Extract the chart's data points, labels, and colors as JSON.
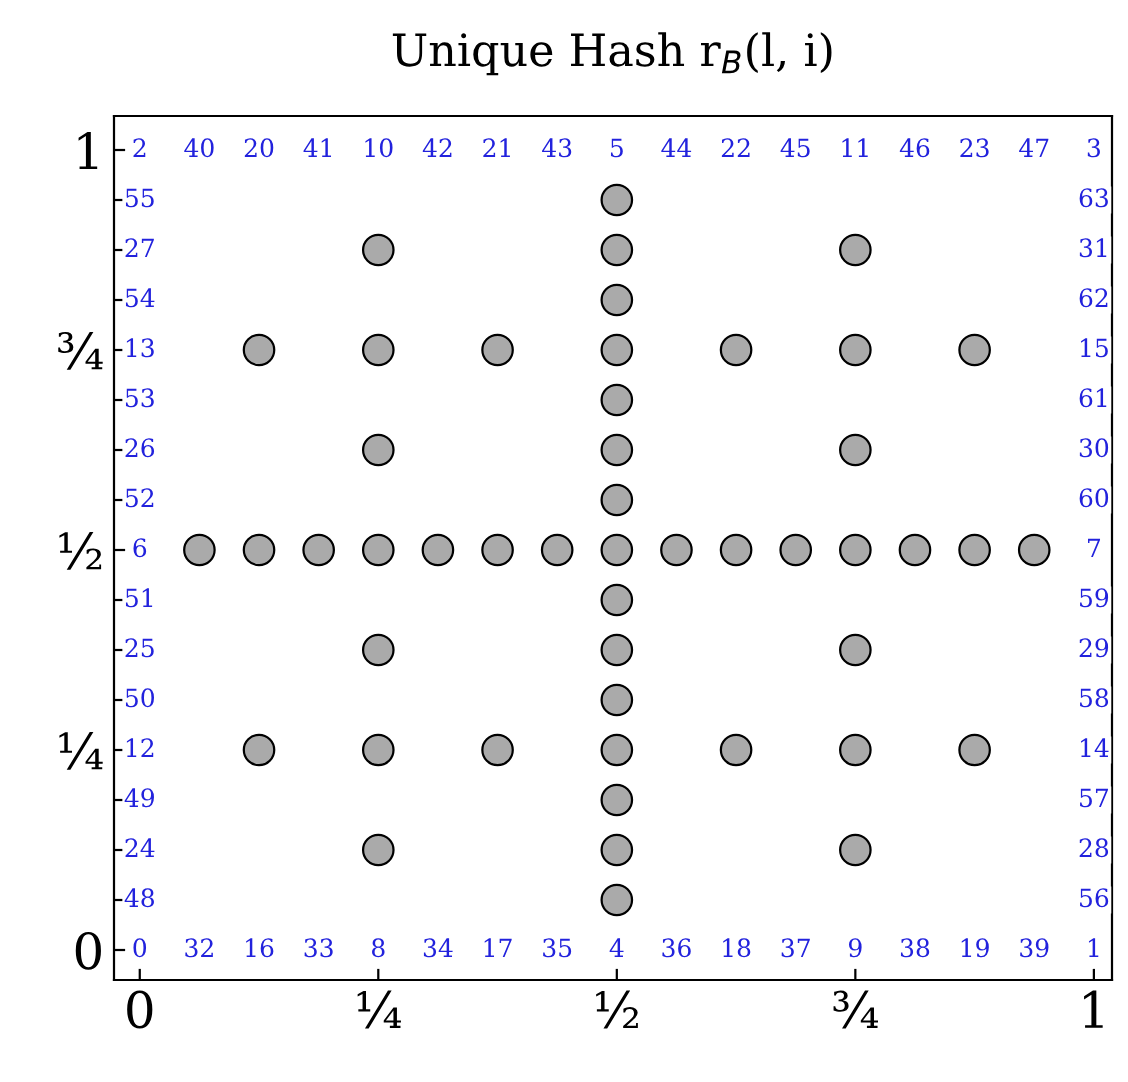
{
  "chart_data": {
    "type": "scatter",
    "title": "Unique Hash r$_{B}$(l, i)",
    "x": [
      0.5,
      0.5,
      0.5,
      0.5,
      0.5,
      0.5,
      0.5,
      0.5,
      0.5,
      0.5,
      0.5,
      0.5,
      0.5,
      0.5,
      0.5,
      0.0625,
      0.125,
      0.1875,
      0.25,
      0.3125,
      0.375,
      0.4375,
      0.5625,
      0.625,
      0.6875,
      0.75,
      0.8125,
      0.875,
      0.9375,
      0.25,
      0.25,
      0.25,
      0.25,
      0.25,
      0.25,
      0.75,
      0.75,
      0.75,
      0.75,
      0.75,
      0.75,
      0.125,
      0.125,
      0.375,
      0.375,
      0.625,
      0.625,
      0.875,
      0.875
    ],
    "values": [
      0.0625,
      0.125,
      0.1875,
      0.25,
      0.3125,
      0.375,
      0.4375,
      0.5,
      0.5625,
      0.625,
      0.6875,
      0.75,
      0.8125,
      0.875,
      0.9375,
      0.5,
      0.5,
      0.5,
      0.5,
      0.5,
      0.5,
      0.5,
      0.5,
      0.5,
      0.5,
      0.5,
      0.5,
      0.5,
      0.5,
      0.125,
      0.25,
      0.375,
      0.625,
      0.75,
      0.875,
      0.125,
      0.25,
      0.375,
      0.625,
      0.75,
      0.875,
      0.25,
      0.75,
      0.25,
      0.75,
      0.25,
      0.75,
      0.25,
      0.75
    ],
    "color": "#aaaaaa",
    "marker": "circle",
    "grid": false,
    "xlim": [
      -0.027,
      1.019
    ],
    "ylim": [
      -0.0375,
      1.0425
    ],
    "xticks": [
      {
        "value": 0,
        "label": "0"
      },
      {
        "value": 0.25,
        "label": "¼"
      },
      {
        "value": 0.5,
        "label": "½"
      },
      {
        "value": 0.75,
        "label": "¾"
      },
      {
        "value": 1,
        "label": "1"
      }
    ],
    "yticks": [
      {
        "value": 0,
        "label": "0"
      },
      {
        "value": 0.0625,
        "label": null
      },
      {
        "value": 0.125,
        "label": null
      },
      {
        "value": 0.1875,
        "label": null
      },
      {
        "value": 0.25,
        "label": "¼"
      },
      {
        "value": 0.3125,
        "label": null
      },
      {
        "value": 0.375,
        "label": null
      },
      {
        "value": 0.4375,
        "label": null
      },
      {
        "value": 0.5,
        "label": "½"
      },
      {
        "value": 0.5625,
        "label": null
      },
      {
        "value": 0.625,
        "label": null
      },
      {
        "value": 0.6875,
        "label": null
      },
      {
        "value": 0.75,
        "label": "¾"
      },
      {
        "value": 0.8125,
        "label": null
      },
      {
        "value": 0.875,
        "label": null
      },
      {
        "value": 0.9375,
        "label": null
      },
      {
        "value": 1,
        "label": "1"
      }
    ],
    "annotations": [
      {
        "text": "2",
        "x": 0,
        "y": 1
      },
      {
        "text": "40",
        "x": 0.0625,
        "y": 1
      },
      {
        "text": "20",
        "x": 0.125,
        "y": 1
      },
      {
        "text": "41",
        "x": 0.1875,
        "y": 1
      },
      {
        "text": "10",
        "x": 0.25,
        "y": 1
      },
      {
        "text": "42",
        "x": 0.3125,
        "y": 1
      },
      {
        "text": "21",
        "x": 0.375,
        "y": 1
      },
      {
        "text": "43",
        "x": 0.4375,
        "y": 1
      },
      {
        "text": "5",
        "x": 0.5,
        "y": 1
      },
      {
        "text": "44",
        "x": 0.5625,
        "y": 1
      },
      {
        "text": "22",
        "x": 0.625,
        "y": 1
      },
      {
        "text": "45",
        "x": 0.6875,
        "y": 1
      },
      {
        "text": "11",
        "x": 0.75,
        "y": 1
      },
      {
        "text": "46",
        "x": 0.8125,
        "y": 1
      },
      {
        "text": "23",
        "x": 0.875,
        "y": 1
      },
      {
        "text": "47",
        "x": 0.9375,
        "y": 1
      },
      {
        "text": "3",
        "x": 1,
        "y": 1
      },
      {
        "text": "0",
        "x": 0,
        "y": 0
      },
      {
        "text": "32",
        "x": 0.0625,
        "y": 0
      },
      {
        "text": "16",
        "x": 0.125,
        "y": 0
      },
      {
        "text": "33",
        "x": 0.1875,
        "y": 0
      },
      {
        "text": "8",
        "x": 0.25,
        "y": 0
      },
      {
        "text": "34",
        "x": 0.3125,
        "y": 0
      },
      {
        "text": "17",
        "x": 0.375,
        "y": 0
      },
      {
        "text": "35",
        "x": 0.4375,
        "y": 0
      },
      {
        "text": "4",
        "x": 0.5,
        "y": 0
      },
      {
        "text": "36",
        "x": 0.5625,
        "y": 0
      },
      {
        "text": "18",
        "x": 0.625,
        "y": 0
      },
      {
        "text": "37",
        "x": 0.6875,
        "y": 0
      },
      {
        "text": "9",
        "x": 0.75,
        "y": 0
      },
      {
        "text": "38",
        "x": 0.8125,
        "y": 0
      },
      {
        "text": "19",
        "x": 0.875,
        "y": 0
      },
      {
        "text": "39",
        "x": 0.9375,
        "y": 0
      },
      {
        "text": "1",
        "x": 1,
        "y": 0
      },
      {
        "text": "55",
        "x": 0,
        "y": 0.9375
      },
      {
        "text": "27",
        "x": 0,
        "y": 0.875
      },
      {
        "text": "54",
        "x": 0,
        "y": 0.8125
      },
      {
        "text": "13",
        "x": 0,
        "y": 0.75
      },
      {
        "text": "53",
        "x": 0,
        "y": 0.6875
      },
      {
        "text": "26",
        "x": 0,
        "y": 0.625
      },
      {
        "text": "52",
        "x": 0,
        "y": 0.5625
      },
      {
        "text": "6",
        "x": 0,
        "y": 0.5
      },
      {
        "text": "51",
        "x": 0,
        "y": 0.4375
      },
      {
        "text": "25",
        "x": 0,
        "y": 0.375
      },
      {
        "text": "50",
        "x": 0,
        "y": 0.3125
      },
      {
        "text": "12",
        "x": 0,
        "y": 0.25
      },
      {
        "text": "49",
        "x": 0,
        "y": 0.1875
      },
      {
        "text": "24",
        "x": 0,
        "y": 0.125
      },
      {
        "text": "48",
        "x": 0,
        "y": 0.0625
      },
      {
        "text": "63",
        "x": 1,
        "y": 0.9375
      },
      {
        "text": "31",
        "x": 1,
        "y": 0.875
      },
      {
        "text": "62",
        "x": 1,
        "y": 0.8125
      },
      {
        "text": "15",
        "x": 1,
        "y": 0.75
      },
      {
        "text": "61",
        "x": 1,
        "y": 0.6875
      },
      {
        "text": "30",
        "x": 1,
        "y": 0.625
      },
      {
        "text": "60",
        "x": 1,
        "y": 0.5625
      },
      {
        "text": "7",
        "x": 1,
        "y": 0.5
      },
      {
        "text": "59",
        "x": 1,
        "y": 0.4375
      },
      {
        "text": "29",
        "x": 1,
        "y": 0.375
      },
      {
        "text": "58",
        "x": 1,
        "y": 0.3125
      },
      {
        "text": "14",
        "x": 1,
        "y": 0.25
      },
      {
        "text": "57",
        "x": 1,
        "y": 0.1875
      },
      {
        "text": "28",
        "x": 1,
        "y": 0.125
      },
      {
        "text": "56",
        "x": 1,
        "y": 0.0625
      }
    ]
  }
}
